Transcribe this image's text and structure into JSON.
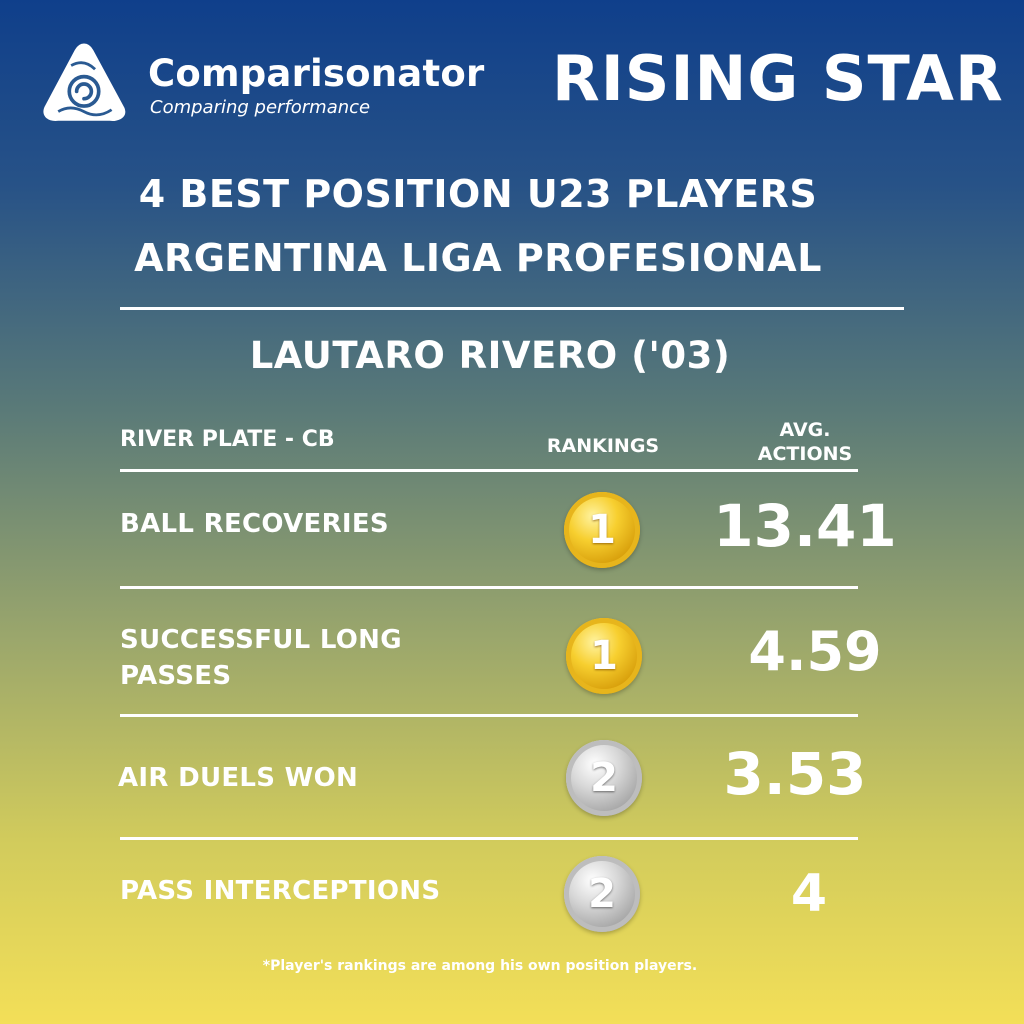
{
  "brand": {
    "name": "Comparisonator",
    "tagline": "Comparing performance",
    "logo_icon": "triangle-swirl-logo-icon"
  },
  "badge_title": "RISING STAR",
  "headline": {
    "line1": "4 BEST POSITION U23 PLAYERS",
    "line2": "ARGENTINA LIGA PROFESIONAL"
  },
  "player": {
    "name": "LAUTARO RIVERO ('03)",
    "team_position": "RIVER PLATE - CB"
  },
  "columns": {
    "rankings": "RANKINGS",
    "avg_line1": "AVG.",
    "avg_line2": "ACTIONS"
  },
  "stats": [
    {
      "metric": "BALL RECOVERIES",
      "rank": "1",
      "medal": "gold",
      "value": "13.41"
    },
    {
      "metric_line1": "SUCCESSFUL LONG",
      "metric_line2": "PASSES",
      "rank": "1",
      "medal": "gold",
      "value": "4.59"
    },
    {
      "metric": "AIR DUELS WON",
      "rank": "2",
      "medal": "silver",
      "value": "3.53"
    },
    {
      "metric": "PASS INTERCEPTIONS",
      "rank": "2",
      "medal": "silver",
      "value": "4"
    }
  ],
  "footnote": "*Player's rankings are among his own position players.",
  "colors": {
    "gradient_top": "#0f3f8b",
    "gradient_bottom": "#f3df58",
    "gold": "#f7cf2f",
    "silver": "#a9a9a9",
    "text": "#ffffff"
  }
}
